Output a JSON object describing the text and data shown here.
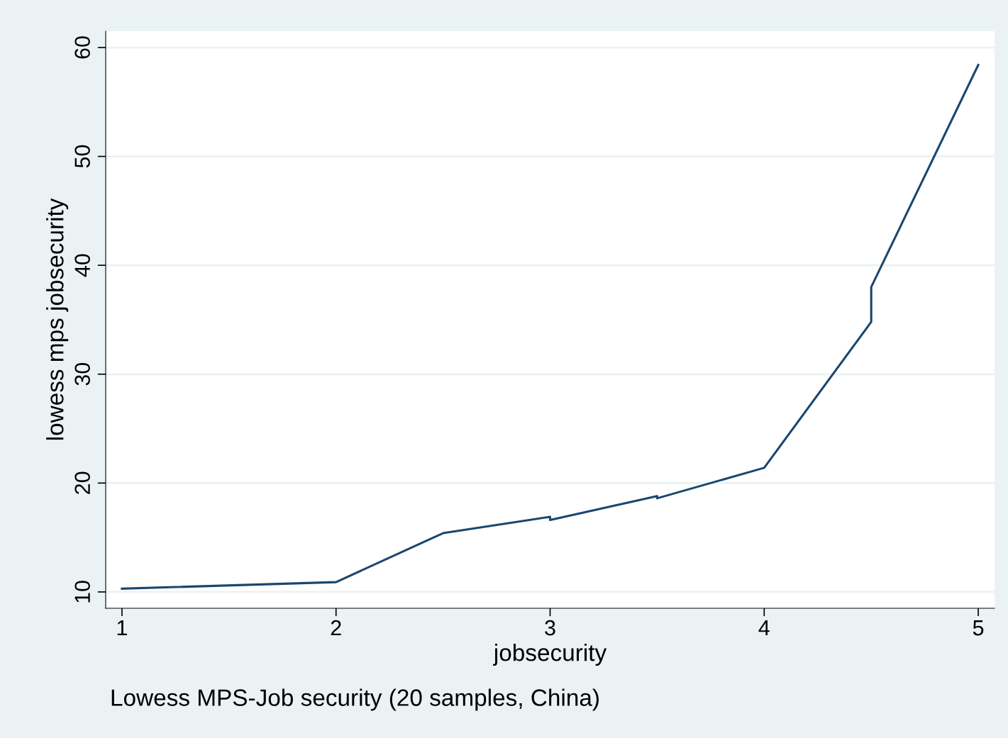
{
  "chart_data": {
    "type": "line",
    "xlabel": "jobsecurity",
    "ylabel": "lowess mps jobsecurity",
    "annotations": [
      "Lowess MPS-Job security (20 samples, China)"
    ],
    "x": [
      1,
      2,
      2.5,
      3,
      3,
      3.5,
      3.5,
      4,
      4.5,
      4.5,
      5
    ],
    "series": [
      {
        "color": "#1a476f",
        "values": [
          10.3,
          10.9,
          15.4,
          16.9,
          16.6,
          18.8,
          18.6,
          21.4,
          34.8,
          38.0,
          58.4
        ]
      }
    ],
    "xlim": [
      0.924,
      5.076
    ],
    "xticks": [
      1,
      2,
      3,
      4,
      5
    ],
    "ylim": [
      8.5,
      61.5
    ],
    "yticks": [
      10,
      20,
      30,
      40,
      50,
      60
    ],
    "grid": "y",
    "legend": false,
    "marker": "none",
    "line_style": "solid"
  }
}
